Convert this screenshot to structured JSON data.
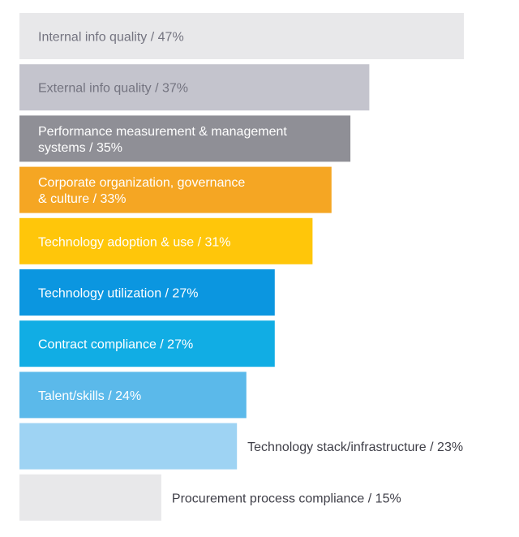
{
  "chart_data": {
    "type": "bar",
    "orientation": "horizontal",
    "title": "",
    "xlabel": "",
    "ylabel": "",
    "xlim": [
      0,
      47
    ],
    "grid": false,
    "categories": [
      "Internal info quality / 47%",
      "External info quality / 37%",
      "Performance measurement & management systems / 35%",
      "Corporate organization, governance & culture / 33%",
      "Technology adoption & use / 31%",
      "Technology utilization / 27%",
      "Contract compliance / 27%",
      "Talent/skills / 24%",
      "Technology stack/infrastructure / 23%",
      "Procurement process compliance / 15%"
    ],
    "values": [
      47,
      37,
      35,
      33,
      31,
      27,
      27,
      24,
      23,
      15
    ],
    "bars": [
      {
        "lines": [
          "Internal info quality / 47%"
        ],
        "value": 47,
        "color": "#e8e8ea",
        "text_color": "#747480",
        "label_outside": false
      },
      {
        "lines": [
          "External info quality / 37%"
        ],
        "value": 37,
        "color": "#c4c4cd",
        "text_color": "#747480",
        "label_outside": false
      },
      {
        "lines": [
          "Performance measurement & management",
          "systems / 35%"
        ],
        "value": 35,
        "color": "#8f8f96",
        "text_color": "#ffffff",
        "label_outside": false
      },
      {
        "lines": [
          "Corporate organization, governance",
          "& culture / 33%"
        ],
        "value": 33,
        "color": "#f5a623",
        "text_color": "#ffffff",
        "label_outside": false
      },
      {
        "lines": [
          "Technology adoption & use / 31%"
        ],
        "value": 31,
        "color": "#ffc60a",
        "text_color": "#ffffff",
        "label_outside": false
      },
      {
        "lines": [
          "Technology utilization / 27%"
        ],
        "value": 27,
        "color": "#0b96e0",
        "text_color": "#ffffff",
        "label_outside": false
      },
      {
        "lines": [
          "Contract compliance / 27%"
        ],
        "value": 27,
        "color": "#11ade4",
        "text_color": "#ffffff",
        "label_outside": false
      },
      {
        "lines": [
          "Talent/skills / 24%"
        ],
        "value": 24,
        "color": "#5bb9ea",
        "text_color": "#ffffff",
        "label_outside": false
      },
      {
        "lines": [
          "Technology stack/infrastructure / 23%"
        ],
        "value": 23,
        "color": "#9ed3f3",
        "text_color": "#3f3f48",
        "label_outside": true
      },
      {
        "lines": [
          "Procurement process compliance / 15%"
        ],
        "value": 15,
        "color": "#e8e8ea",
        "text_color": "#3f3f48",
        "label_outside": true
      }
    ]
  }
}
